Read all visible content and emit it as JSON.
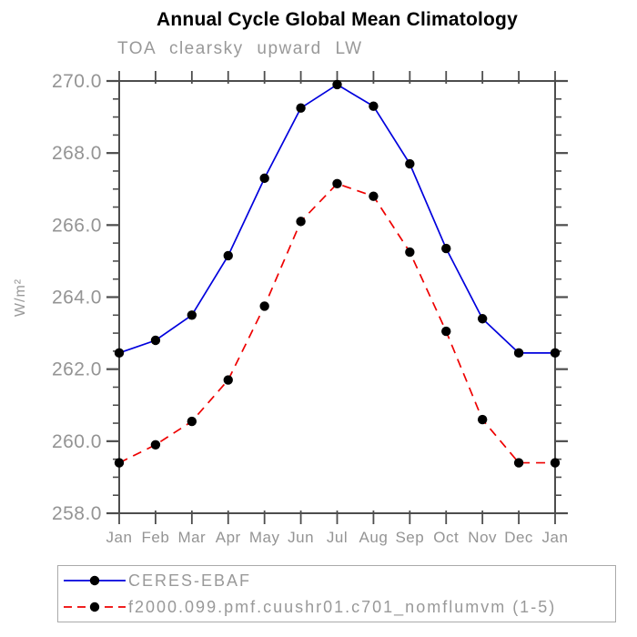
{
  "chart_data": {
    "type": "line",
    "title": "Annual Cycle Global Mean Climatology",
    "subtitle": "TOA clearsky upward LW",
    "ylabel": "W/m²",
    "xlabel": "",
    "x_categories": [
      "Jan",
      "Feb",
      "Mar",
      "Apr",
      "May",
      "Jun",
      "Jul",
      "Aug",
      "Sep",
      "Oct",
      "Nov",
      "Dec",
      "Jan"
    ],
    "ylim": [
      258.0,
      270.0
    ],
    "ytick_major_step": 2.0,
    "ytick_minor_step": 0.5,
    "ytick_labels": [
      "258.0",
      "260.0",
      "262.0",
      "264.0",
      "266.0",
      "268.0",
      "270.0"
    ],
    "grid": false,
    "legend_position": "bottom-left-box",
    "series": [
      {
        "name": "CERES-EBAF",
        "color": "#0000dd",
        "style": "solid",
        "marker": "circle",
        "marker_color": "#000000",
        "values": [
          262.45,
          262.8,
          263.5,
          265.15,
          267.3,
          269.25,
          269.9,
          269.3,
          267.7,
          265.35,
          263.4,
          262.45,
          262.45
        ]
      },
      {
        "name": "f2000.099.pmf.cuushr01.c701_nomflumvm (1-5)",
        "color": "#ee0000",
        "style": "dashed",
        "marker": "circle",
        "marker_color": "#000000",
        "values": [
          259.4,
          259.9,
          260.55,
          261.7,
          263.75,
          266.1,
          267.15,
          266.8,
          265.25,
          263.05,
          260.6,
          259.4,
          259.4
        ]
      }
    ],
    "colors": {
      "axis": "#4d4d4d",
      "tick": "#4d4d4d",
      "tick_label": "#949494",
      "title": "#000000",
      "subtitle": "#999999",
      "legend_border": "#aaaaaa",
      "legend_text": "#999999"
    }
  }
}
